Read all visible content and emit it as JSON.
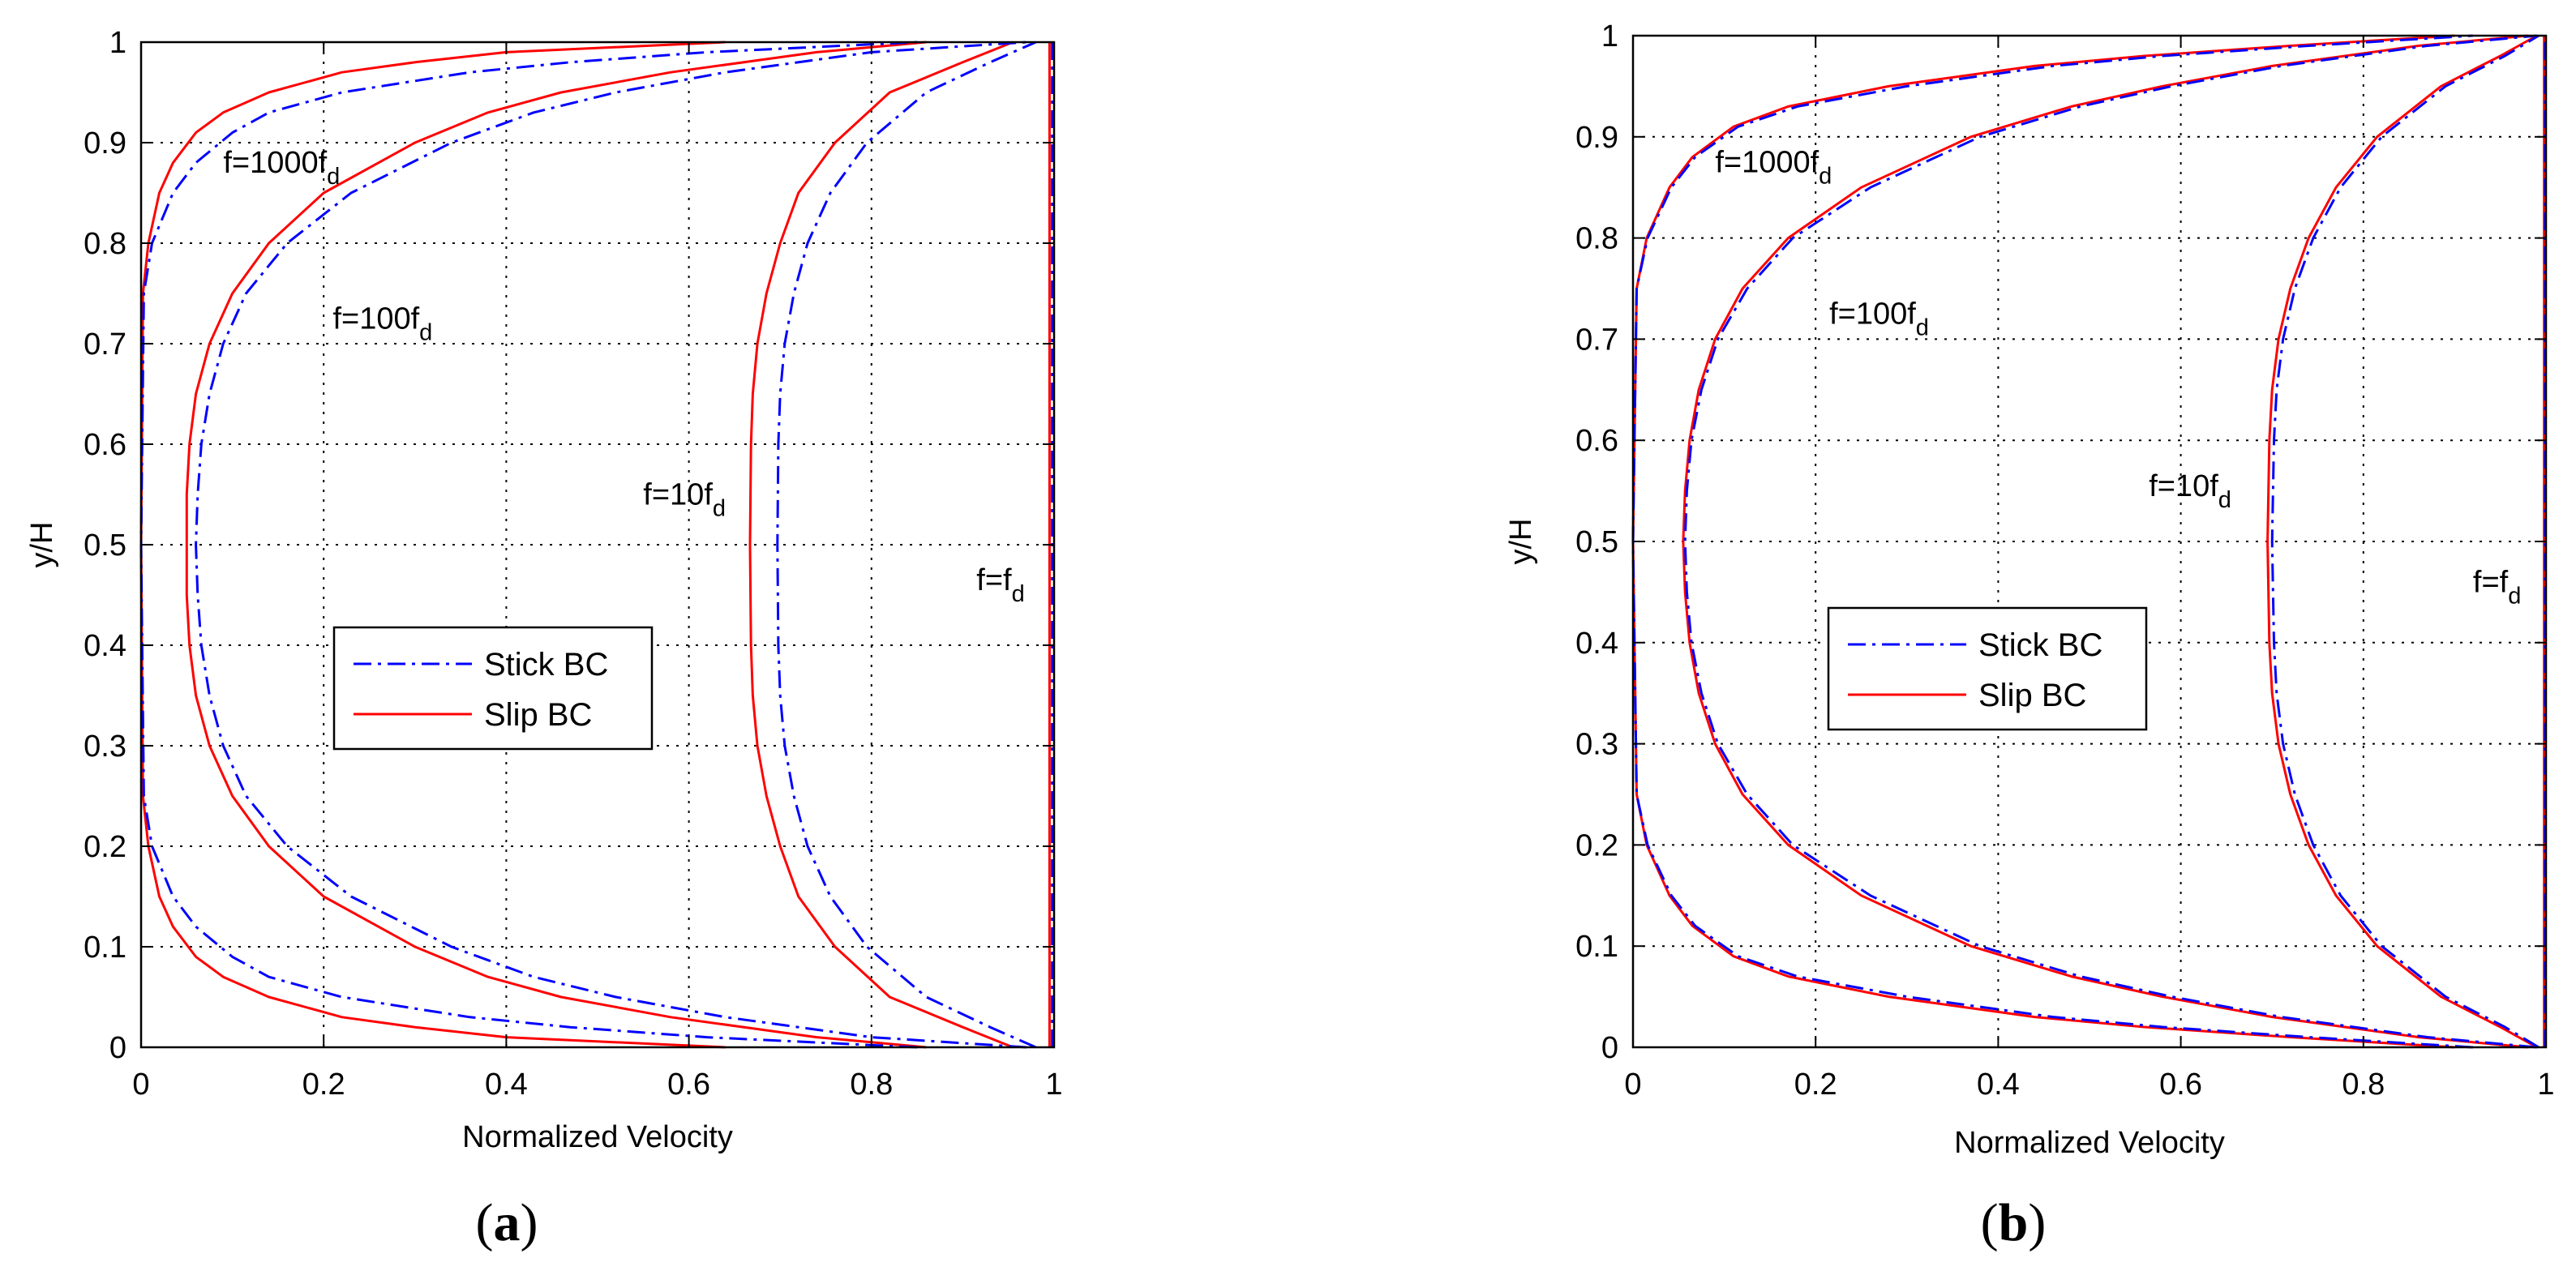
{
  "chart_data": [
    {
      "type": "line",
      "panel_label": "a",
      "xlabel": "Normalized Velocity",
      "ylabel": "y/H",
      "xlim": [
        0,
        1
      ],
      "ylim": [
        0,
        1
      ],
      "xticks": [
        "0",
        "0.2",
        "0.4",
        "0.6",
        "0.8",
        "1"
      ],
      "yticks": [
        "0",
        "0.1",
        "0.2",
        "0.3",
        "0.4",
        "0.5",
        "0.6",
        "0.7",
        "0.8",
        "0.9",
        "1"
      ],
      "grid": true,
      "legend": {
        "position": "center-left",
        "entries": [
          {
            "label": "Stick BC",
            "color": "#0000ff",
            "style": "dash-dot"
          },
          {
            "label": "Slip BC",
            "color": "#ff0000",
            "style": "solid"
          }
        ]
      },
      "annotations": [
        {
          "base": "f=1000f",
          "sub": "d",
          "x": 0.09,
          "y": 0.87
        },
        {
          "base": "f=100f",
          "sub": "d",
          "x": 0.21,
          "y": 0.715
        },
        {
          "base": "f=10f",
          "sub": "d",
          "x": 0.55,
          "y": 0.54
        },
        {
          "base": "f=f",
          "sub": "d",
          "x": 0.915,
          "y": 0.455
        }
      ],
      "series": [
        {
          "name": "Slip BC f=fd",
          "color": "#ff0000",
          "style": "solid",
          "y": [
            0,
            0.02,
            0.1,
            0.2,
            0.3,
            0.4,
            0.5,
            0.6,
            0.7,
            0.8,
            0.9,
            0.98,
            1
          ],
          "x": [
            0.995,
            0.995,
            0.995,
            0.995,
            0.995,
            0.995,
            0.995,
            0.995,
            0.995,
            0.995,
            0.995,
            0.995,
            0.995
          ]
        },
        {
          "name": "Stick BC f=fd",
          "color": "#0000ff",
          "style": "dash-dot",
          "y": [
            0,
            0.02,
            0.1,
            0.2,
            0.3,
            0.4,
            0.5,
            0.6,
            0.7,
            0.8,
            0.9,
            0.98,
            1
          ],
          "x": [
            0.998,
            0.998,
            0.998,
            0.998,
            0.998,
            0.998,
            0.998,
            0.998,
            0.998,
            0.998,
            0.998,
            0.998,
            0.998
          ]
        },
        {
          "name": "Slip BC f=10fd",
          "color": "#ff0000",
          "style": "solid",
          "y": [
            0,
            0.02,
            0.05,
            0.1,
            0.15,
            0.2,
            0.25,
            0.3,
            0.35,
            0.4,
            0.5,
            0.6,
            0.65,
            0.7,
            0.75,
            0.8,
            0.85,
            0.9,
            0.95,
            0.98,
            1
          ],
          "x": [
            0.955,
            0.9,
            0.82,
            0.76,
            0.72,
            0.7,
            0.685,
            0.675,
            0.67,
            0.668,
            0.667,
            0.668,
            0.67,
            0.675,
            0.685,
            0.7,
            0.72,
            0.76,
            0.82,
            0.9,
            0.955
          ]
        },
        {
          "name": "Stick BC f=10fd",
          "color": "#0000ff",
          "style": "dash-dot",
          "y": [
            0,
            0.02,
            0.05,
            0.1,
            0.15,
            0.2,
            0.25,
            0.3,
            0.35,
            0.4,
            0.5,
            0.6,
            0.65,
            0.7,
            0.75,
            0.8,
            0.85,
            0.9,
            0.95,
            0.98,
            1
          ],
          "x": [
            0.98,
            0.93,
            0.86,
            0.795,
            0.755,
            0.73,
            0.715,
            0.705,
            0.7,
            0.698,
            0.697,
            0.698,
            0.7,
            0.705,
            0.715,
            0.73,
            0.755,
            0.795,
            0.86,
            0.93,
            0.98
          ]
        },
        {
          "name": "Slip BC f=100fd",
          "color": "#ff0000",
          "style": "solid",
          "y": [
            0,
            0.01,
            0.03,
            0.05,
            0.07,
            0.1,
            0.15,
            0.2,
            0.25,
            0.3,
            0.35,
            0.4,
            0.45,
            0.5,
            0.55,
            0.6,
            0.65,
            0.7,
            0.75,
            0.8,
            0.85,
            0.9,
            0.93,
            0.95,
            0.97,
            0.99,
            1
          ],
          "x": [
            0.86,
            0.74,
            0.58,
            0.46,
            0.38,
            0.3,
            0.2,
            0.14,
            0.1,
            0.075,
            0.06,
            0.053,
            0.05,
            0.05,
            0.05,
            0.053,
            0.06,
            0.075,
            0.1,
            0.14,
            0.2,
            0.3,
            0.38,
            0.46,
            0.58,
            0.74,
            0.86
          ]
        },
        {
          "name": "Stick BC f=100fd",
          "color": "#0000ff",
          "style": "dash-dot",
          "y": [
            0,
            0.01,
            0.03,
            0.05,
            0.07,
            0.1,
            0.15,
            0.2,
            0.25,
            0.3,
            0.35,
            0.4,
            0.45,
            0.5,
            0.55,
            0.6,
            0.65,
            0.7,
            0.75,
            0.8,
            0.85,
            0.9,
            0.93,
            0.95,
            0.97,
            0.99,
            1
          ],
          "x": [
            0.97,
            0.8,
            0.64,
            0.52,
            0.43,
            0.34,
            0.23,
            0.16,
            0.115,
            0.09,
            0.075,
            0.066,
            0.062,
            0.06,
            0.062,
            0.066,
            0.075,
            0.09,
            0.115,
            0.16,
            0.23,
            0.34,
            0.43,
            0.52,
            0.64,
            0.8,
            0.97
          ]
        },
        {
          "name": "Slip BC f=1000fd",
          "color": "#ff0000",
          "style": "solid",
          "y": [
            0,
            0.01,
            0.02,
            0.03,
            0.05,
            0.07,
            0.09,
            0.12,
            0.15,
            0.2,
            0.25,
            0.5,
            0.75,
            0.8,
            0.85,
            0.88,
            0.91,
            0.93,
            0.95,
            0.97,
            0.98,
            0.99,
            1
          ],
          "x": [
            0.64,
            0.4,
            0.3,
            0.22,
            0.14,
            0.09,
            0.06,
            0.035,
            0.02,
            0.008,
            0.002,
            0.0,
            0.002,
            0.008,
            0.02,
            0.035,
            0.06,
            0.09,
            0.14,
            0.22,
            0.3,
            0.4,
            0.64
          ]
        },
        {
          "name": "Stick BC f=1000fd",
          "color": "#0000ff",
          "style": "dash-dot",
          "y": [
            0,
            0.01,
            0.02,
            0.03,
            0.05,
            0.07,
            0.09,
            0.12,
            0.15,
            0.2,
            0.25,
            0.5,
            0.75,
            0.8,
            0.85,
            0.88,
            0.91,
            0.93,
            0.95,
            0.97,
            0.98,
            0.99,
            1
          ],
          "x": [
            0.85,
            0.62,
            0.47,
            0.36,
            0.22,
            0.14,
            0.1,
            0.06,
            0.035,
            0.012,
            0.003,
            0.0,
            0.003,
            0.012,
            0.035,
            0.06,
            0.1,
            0.14,
            0.22,
            0.36,
            0.47,
            0.62,
            0.85
          ]
        }
      ]
    },
    {
      "type": "line",
      "panel_label": "b",
      "xlabel": "Normalized Velocity",
      "ylabel": "y/H",
      "xlim": [
        0,
        1
      ],
      "ylim": [
        0,
        1
      ],
      "xticks": [
        "0",
        "0.2",
        "0.4",
        "0.6",
        "0.8",
        "1"
      ],
      "yticks": [
        "0",
        "0.1",
        "0.2",
        "0.3",
        "0.4",
        "0.5",
        "0.6",
        "0.7",
        "0.8",
        "0.9",
        "1"
      ],
      "grid": true,
      "legend": {
        "position": "center-left",
        "entries": [
          {
            "label": "Stick BC",
            "color": "#0000ff",
            "style": "dash-dot"
          },
          {
            "label": "Slip BC",
            "color": "#ff0000",
            "style": "solid"
          }
        ]
      },
      "annotations": [
        {
          "base": "f=1000f",
          "sub": "d",
          "x": 0.09,
          "y": 0.865
        },
        {
          "base": "f=100f",
          "sub": "d",
          "x": 0.215,
          "y": 0.715
        },
        {
          "base": "f=10f",
          "sub": "d",
          "x": 0.565,
          "y": 0.545
        },
        {
          "base": "f=f",
          "sub": "d",
          "x": 0.92,
          "y": 0.45
        }
      ],
      "series": [
        {
          "name": "Slip BC f=fd",
          "color": "#ff0000",
          "style": "solid",
          "y": [
            0,
            0.02,
            0.1,
            0.2,
            0.3,
            0.4,
            0.5,
            0.6,
            0.7,
            0.8,
            0.9,
            0.98,
            1
          ],
          "x": [
            0.998,
            0.998,
            0.998,
            0.998,
            0.998,
            0.998,
            0.998,
            0.998,
            0.998,
            0.998,
            0.998,
            0.998,
            0.998
          ]
        },
        {
          "name": "Stick BC f=fd",
          "color": "#0000ff",
          "style": "dash-dot",
          "y": [
            0,
            0.02,
            0.1,
            0.2,
            0.3,
            0.4,
            0.5,
            0.6,
            0.7,
            0.8,
            0.9,
            0.98,
            1
          ],
          "x": [
            0.999,
            0.999,
            0.999,
            0.999,
            0.999,
            0.999,
            0.999,
            0.999,
            0.999,
            0.999,
            0.999,
            0.999,
            0.999
          ]
        },
        {
          "name": "Slip BC f=10fd",
          "color": "#ff0000",
          "style": "solid",
          "y": [
            0,
            0.02,
            0.05,
            0.1,
            0.15,
            0.2,
            0.25,
            0.3,
            0.35,
            0.4,
            0.5,
            0.6,
            0.65,
            0.7,
            0.75,
            0.8,
            0.85,
            0.9,
            0.95,
            0.98,
            1
          ],
          "x": [
            0.99,
            0.95,
            0.885,
            0.815,
            0.77,
            0.74,
            0.72,
            0.707,
            0.7,
            0.697,
            0.695,
            0.697,
            0.7,
            0.707,
            0.72,
            0.74,
            0.77,
            0.815,
            0.885,
            0.95,
            0.99
          ]
        },
        {
          "name": "Stick BC f=10fd",
          "color": "#0000ff",
          "style": "dash-dot",
          "y": [
            0,
            0.02,
            0.05,
            0.1,
            0.15,
            0.2,
            0.25,
            0.3,
            0.35,
            0.4,
            0.5,
            0.6,
            0.65,
            0.7,
            0.75,
            0.8,
            0.85,
            0.9,
            0.95,
            0.98,
            1
          ],
          "x": [
            0.992,
            0.955,
            0.89,
            0.82,
            0.775,
            0.745,
            0.725,
            0.712,
            0.705,
            0.702,
            0.7,
            0.702,
            0.705,
            0.712,
            0.725,
            0.745,
            0.775,
            0.82,
            0.89,
            0.955,
            0.992
          ]
        },
        {
          "name": "Slip BC f=100fd",
          "color": "#ff0000",
          "style": "solid",
          "y": [
            0,
            0.01,
            0.03,
            0.05,
            0.07,
            0.1,
            0.15,
            0.2,
            0.25,
            0.3,
            0.35,
            0.4,
            0.45,
            0.5,
            0.55,
            0.6,
            0.65,
            0.7,
            0.75,
            0.8,
            0.85,
            0.9,
            0.93,
            0.95,
            0.97,
            0.99,
            1
          ],
          "x": [
            0.98,
            0.86,
            0.7,
            0.58,
            0.48,
            0.37,
            0.25,
            0.17,
            0.12,
            0.09,
            0.072,
            0.062,
            0.057,
            0.055,
            0.057,
            0.062,
            0.072,
            0.09,
            0.12,
            0.17,
            0.25,
            0.37,
            0.48,
            0.58,
            0.7,
            0.86,
            0.98
          ]
        },
        {
          "name": "Stick BC f=100fd",
          "color": "#0000ff",
          "style": "dash-dot",
          "y": [
            0,
            0.01,
            0.03,
            0.05,
            0.07,
            0.1,
            0.15,
            0.2,
            0.25,
            0.3,
            0.35,
            0.4,
            0.45,
            0.5,
            0.55,
            0.6,
            0.65,
            0.7,
            0.75,
            0.8,
            0.85,
            0.9,
            0.93,
            0.95,
            0.97,
            0.99,
            1
          ],
          "x": [
            0.99,
            0.87,
            0.71,
            0.59,
            0.49,
            0.38,
            0.26,
            0.175,
            0.125,
            0.093,
            0.075,
            0.064,
            0.059,
            0.057,
            0.059,
            0.064,
            0.075,
            0.093,
            0.125,
            0.175,
            0.26,
            0.38,
            0.49,
            0.59,
            0.71,
            0.87,
            0.99
          ]
        },
        {
          "name": "Slip BC f=1000fd",
          "color": "#ff0000",
          "style": "solid",
          "y": [
            0,
            0.01,
            0.02,
            0.03,
            0.05,
            0.07,
            0.09,
            0.12,
            0.15,
            0.2,
            0.25,
            0.5,
            0.75,
            0.8,
            0.85,
            0.88,
            0.91,
            0.93,
            0.95,
            0.97,
            0.98,
            0.99,
            1
          ],
          "x": [
            0.9,
            0.72,
            0.56,
            0.44,
            0.28,
            0.17,
            0.11,
            0.065,
            0.04,
            0.015,
            0.004,
            0.0,
            0.004,
            0.015,
            0.04,
            0.065,
            0.11,
            0.17,
            0.28,
            0.44,
            0.56,
            0.72,
            0.9
          ]
        },
        {
          "name": "Stick BC f=1000fd",
          "color": "#0000ff",
          "style": "dash-dot",
          "y": [
            0,
            0.01,
            0.02,
            0.03,
            0.05,
            0.07,
            0.09,
            0.12,
            0.15,
            0.2,
            0.25,
            0.5,
            0.75,
            0.8,
            0.85,
            0.88,
            0.91,
            0.93,
            0.95,
            0.97,
            0.98,
            0.99,
            1
          ],
          "x": [
            0.92,
            0.74,
            0.58,
            0.46,
            0.3,
            0.18,
            0.115,
            0.068,
            0.042,
            0.016,
            0.004,
            0.0,
            0.004,
            0.016,
            0.042,
            0.068,
            0.115,
            0.18,
            0.3,
            0.46,
            0.58,
            0.74,
            0.92
          ]
        }
      ]
    }
  ]
}
